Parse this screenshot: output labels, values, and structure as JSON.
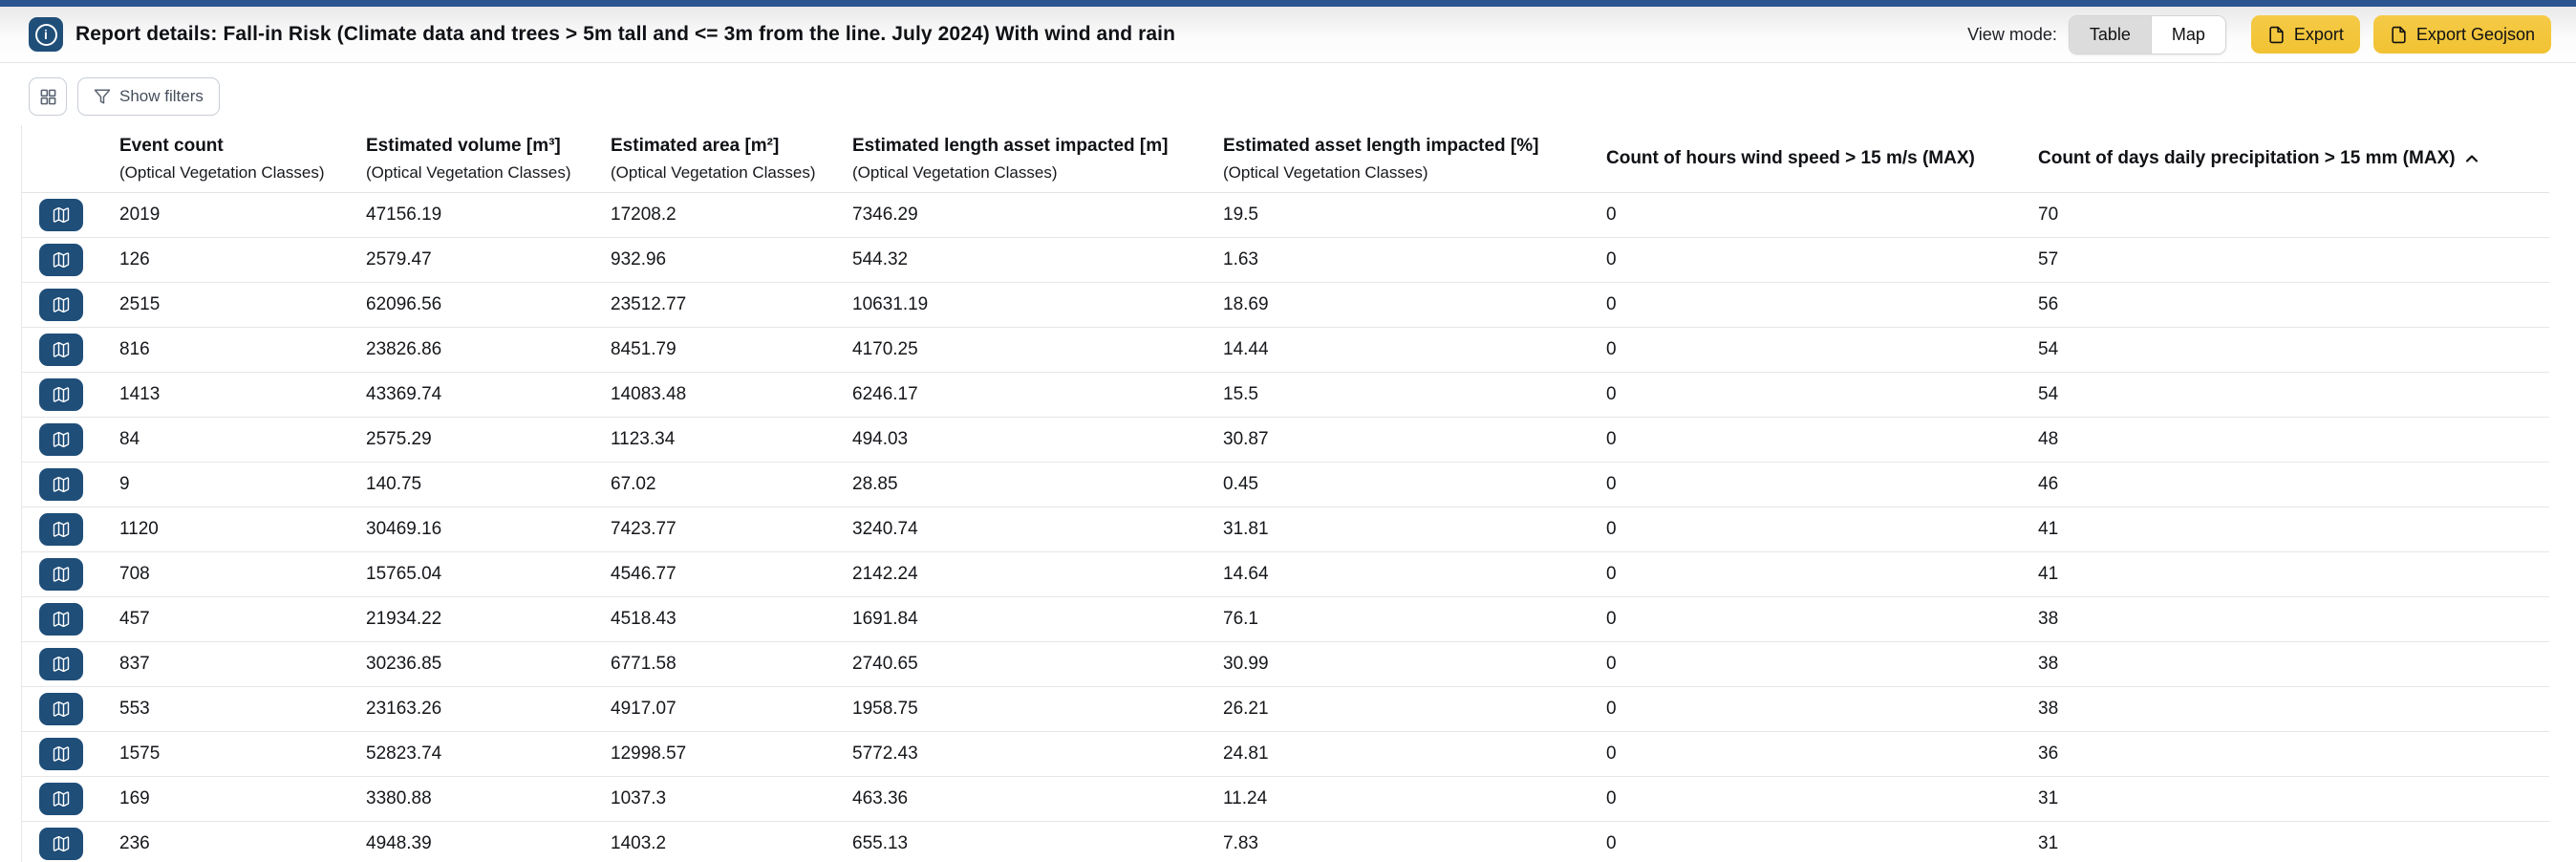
{
  "header": {
    "title": "Report details: Fall-in Risk (Climate data and trees > 5m tall and <= 3m from the line. July 2024) With wind and rain",
    "info_icon": "info-icon",
    "view_mode_label": "View mode:",
    "view_modes": [
      {
        "label": "Table",
        "selected": true
      },
      {
        "label": "Map",
        "selected": false
      }
    ],
    "export_button_label": "Export",
    "export_geojson_button_label": "Export Geojson",
    "export_icon": "file-icon"
  },
  "toolbar": {
    "grid_view_icon": "grid-icon",
    "filter_icon": "funnel-icon",
    "show_filters_label": "Show filters"
  },
  "table": {
    "row_action_icon": "map-icon",
    "sort_icon": "chevron-up-icon",
    "columns": [
      {
        "label": "Event count",
        "sub": "(Optical Vegetation Classes)"
      },
      {
        "label": "Estimated volume [m³]",
        "sub": "(Optical Vegetation Classes)"
      },
      {
        "label": "Estimated area [m²]",
        "sub": "(Optical Vegetation Classes)"
      },
      {
        "label": "Estimated length asset impacted [m]",
        "sub": "(Optical Vegetation Classes)"
      },
      {
        "label": "Estimated asset length impacted [%]",
        "sub": "(Optical Vegetation Classes)"
      },
      {
        "label": "Count of hours wind speed > 15 m/s (MAX)"
      },
      {
        "label": "Count of days daily precipitation > 15 mm (MAX)",
        "sorted": "asc"
      }
    ],
    "rows": [
      [
        "2019",
        "47156.19",
        "17208.2",
        "7346.29",
        "19.5",
        "0",
        "70"
      ],
      [
        "126",
        "2579.47",
        "932.96",
        "544.32",
        "1.63",
        "0",
        "57"
      ],
      [
        "2515",
        "62096.56",
        "23512.77",
        "10631.19",
        "18.69",
        "0",
        "56"
      ],
      [
        "816",
        "23826.86",
        "8451.79",
        "4170.25",
        "14.44",
        "0",
        "54"
      ],
      [
        "1413",
        "43369.74",
        "14083.48",
        "6246.17",
        "15.5",
        "0",
        "54"
      ],
      [
        "84",
        "2575.29",
        "1123.34",
        "494.03",
        "30.87",
        "0",
        "48"
      ],
      [
        "9",
        "140.75",
        "67.02",
        "28.85",
        "0.45",
        "0",
        "46"
      ],
      [
        "1120",
        "30469.16",
        "7423.77",
        "3240.74",
        "31.81",
        "0",
        "41"
      ],
      [
        "708",
        "15765.04",
        "4546.77",
        "2142.24",
        "14.64",
        "0",
        "41"
      ],
      [
        "457",
        "21934.22",
        "4518.43",
        "1691.84",
        "76.1",
        "0",
        "38"
      ],
      [
        "837",
        "30236.85",
        "6771.58",
        "2740.65",
        "30.99",
        "0",
        "38"
      ],
      [
        "553",
        "23163.26",
        "4917.07",
        "1958.75",
        "26.21",
        "0",
        "38"
      ],
      [
        "1575",
        "52823.74",
        "12998.57",
        "5772.43",
        "24.81",
        "0",
        "36"
      ],
      [
        "169",
        "3380.88",
        "1037.3",
        "463.36",
        "11.24",
        "0",
        "31"
      ],
      [
        "236",
        "4948.39",
        "1403.2",
        "655.13",
        "7.83",
        "0",
        "31"
      ]
    ]
  },
  "colors": {
    "top_strip_blue": "#2B5490",
    "accent_blue": "#1F4E79",
    "export_yellow": "#F2C53D",
    "selected_segment_gray": "#DCDCDC",
    "row_border": "#E6E6E6"
  }
}
